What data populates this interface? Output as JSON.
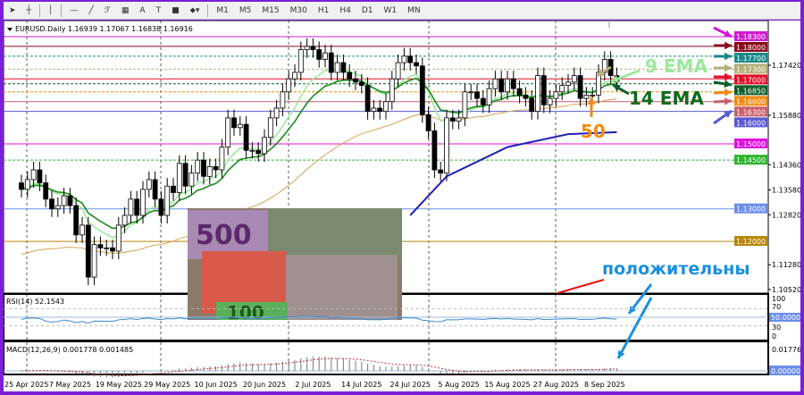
{
  "toolbar": {
    "tools": [
      "arrow-cursor",
      "crosshair",
      "vertical-line",
      "horizontal-line",
      "trendline",
      "fibonacci",
      "grid",
      "text",
      "text-label",
      "rectangle",
      "shapes"
    ],
    "timeframes": [
      "M1",
      "M5",
      "M15",
      "M30",
      "H1",
      "H4",
      "D1",
      "W1",
      "MN"
    ],
    "tool_text": "A"
  },
  "chart_data": {
    "type": "candlestick",
    "title": "EURUSD.Daily 1.16939 1.17067 1.16838 1.16916",
    "symbol": "EURUSD.Daily",
    "ohlc_current": [
      1.16939,
      1.17067,
      1.16838,
      1.16916
    ],
    "ylim": [
      1.1035,
      1.1855
    ],
    "closes": [
      1.136,
      1.139,
      1.142,
      1.138,
      1.133,
      1.13,
      1.131,
      1.134,
      1.131,
      1.122,
      1.125,
      1.109,
      1.119,
      1.118,
      1.118,
      1.117,
      1.125,
      1.128,
      1.133,
      1.128,
      1.136,
      1.139,
      1.133,
      1.128,
      1.137,
      1.135,
      1.144,
      1.137,
      1.141,
      1.145,
      1.14,
      1.143,
      1.142,
      1.149,
      1.158,
      1.155,
      1.156,
      1.148,
      1.148,
      1.147,
      1.152,
      1.158,
      1.161,
      1.166,
      1.17,
      1.172,
      1.179,
      1.18,
      1.179,
      1.176,
      1.178,
      1.172,
      1.175,
      1.172,
      1.17,
      1.169,
      1.168,
      1.16,
      1.161,
      1.16,
      1.163,
      1.17,
      1.175,
      1.177,
      1.175,
      1.174,
      1.159,
      1.154,
      1.142,
      1.141,
      1.158,
      1.157,
      1.158,
      1.166,
      1.166,
      1.164,
      1.162,
      1.167,
      1.17,
      1.166,
      1.17,
      1.167,
      1.165,
      1.164,
      1.16,
      1.171,
      1.162,
      1.164,
      1.166,
      1.168,
      1.169,
      1.171,
      1.164,
      1.165,
      1.165,
      1.172,
      1.176,
      1.171,
      1.169
    ],
    "x_labels": [
      {
        "label": "25 Apr 2025",
        "bar": 0
      },
      {
        "label": "7 May 2025",
        "bar": 8
      },
      {
        "label": "19 May 2025",
        "bar": 16
      },
      {
        "label": "29 May 2025",
        "bar": 24
      },
      {
        "label": "10 Jun 2025",
        "bar": 32
      },
      {
        "label": "20 Jun 2025",
        "bar": 40
      },
      {
        "label": "2 Jul 2025",
        "bar": 48
      },
      {
        "label": "14 Jul 2025",
        "bar": 56
      },
      {
        "label": "24 Jul 2025",
        "bar": 64
      },
      {
        "label": "5 Aug 2025",
        "bar": 72
      },
      {
        "label": "15 Aug 2025",
        "bar": 80
      },
      {
        "label": "27 Aug 2025",
        "bar": 88
      },
      {
        "label": "8 Sep 2025",
        "bar": 96
      }
    ],
    "y_ticks": [
      "1.17420",
      "1.15880",
      "1.14360",
      "1.13580",
      "1.12820",
      "1.11280",
      "1.10520"
    ],
    "levels": [
      {
        "value": "1.18300",
        "color": "#d11ad1"
      },
      {
        "value": "1.18000",
        "color": "#8b0a1a"
      },
      {
        "value": "1.17700",
        "color": "#1a8a8a"
      },
      {
        "value": "1.17300",
        "color": "#b5b07a"
      },
      {
        "value": "1.17000",
        "color": "#e0102a"
      },
      {
        "value": "1.16850",
        "color": "#0f5e2a"
      },
      {
        "value": "1.16600",
        "color": "#f28a10"
      },
      {
        "value": "1.16300",
        "color": "#c8606a"
      },
      {
        "value": "1.16000",
        "color": "#5a5ad0"
      },
      {
        "value": "1.15000",
        "color": "#e010e0"
      },
      {
        "value": "1.14500",
        "color": "#2ab52a"
      },
      {
        "value": "1.13000",
        "color": "#6a8ee8"
      },
      {
        "value": "1.12000",
        "color": "#b8860b"
      }
    ],
    "blue_ma": [
      [
        64,
        1.128
      ],
      [
        70,
        1.14
      ],
      [
        80,
        1.149
      ],
      [
        90,
        1.153
      ],
      [
        98,
        1.1536
      ]
    ],
    "ema_periods": {
      "fast": 9,
      "mid": 14,
      "slow": 50
    },
    "rsi": {
      "label": "RSI(14) 52.1543",
      "levels": [
        "100",
        "70",
        "50.0000",
        "30",
        "0"
      ]
    },
    "macd": {
      "label": "MACD(12,26,9) 0.001778 0.001485",
      "ticks": [
        "0.01776",
        "0.000000"
      ]
    }
  },
  "annotations": {
    "ema9": "9 EMA",
    "ema14": "14 EMA",
    "ema50": "50",
    "positive": "положительны"
  },
  "picture": {
    "description_text": "500",
    "note": "100"
  }
}
